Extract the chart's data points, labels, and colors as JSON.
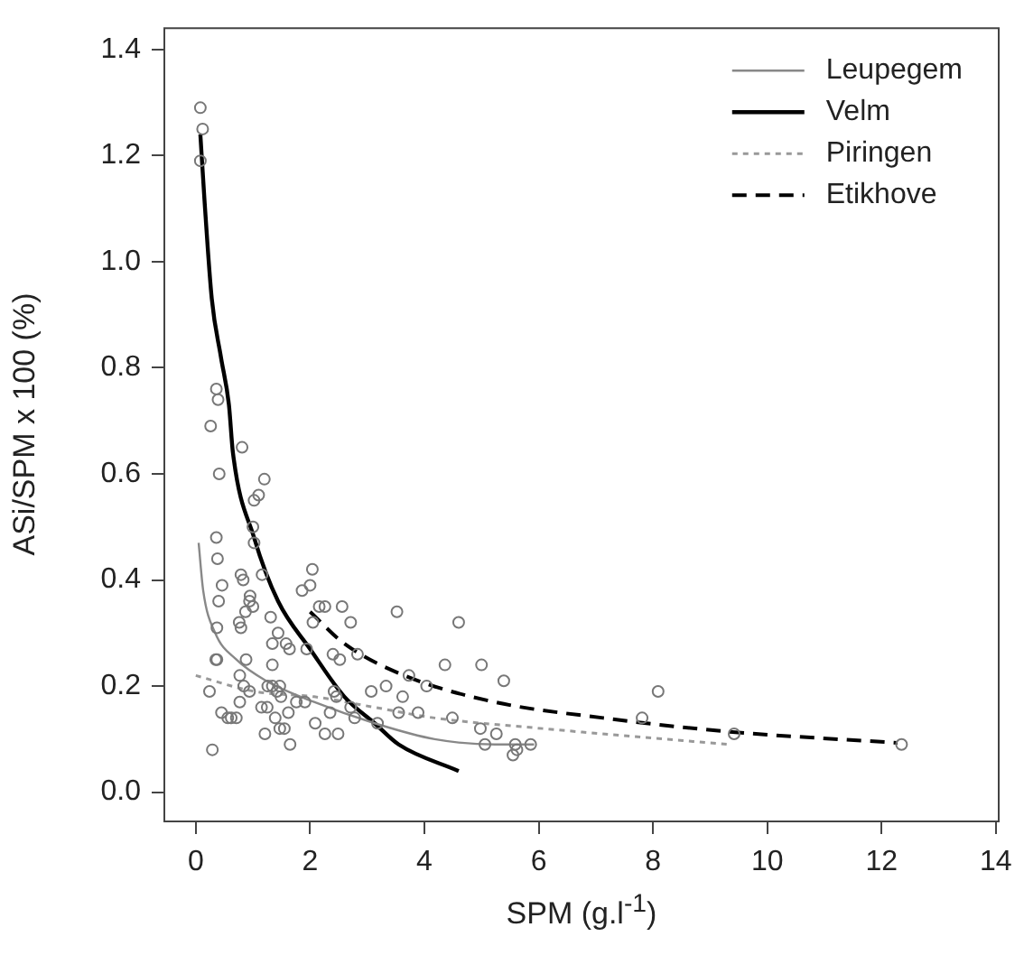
{
  "chart_data": {
    "type": "scatter",
    "xlabel": "SPM (g.l$^{-1}$)",
    "ylabel": "ASi/SPM x 100 (%)",
    "xlim": [
      -0.55,
      14.05
    ],
    "ylim": [
      -0.055,
      1.44
    ],
    "xticks": [
      0,
      2,
      4,
      6,
      8,
      10,
      12,
      14
    ],
    "yticks": [
      {
        "value": 0,
        "label": "0.0"
      },
      0.2,
      0.4,
      0.6,
      0.8,
      {
        "value": 1,
        "label": "1.0"
      },
      1.2,
      1.4
    ],
    "grid": false,
    "legend": "top right",
    "series": [
      {
        "color": "#777777",
        "marker": "circle",
        "x": [
          0.08,
          0.12,
          0.08,
          0.36,
          0.39,
          0.26,
          0.41,
          0.81,
          1.2,
          1.1,
          1.02,
          1.0,
          1.02,
          0.36,
          0.38,
          1.16,
          0.46,
          0.79,
          0.83,
          0.4,
          0.95,
          0.94,
          1.0,
          0.87,
          0.37,
          0.76,
          0.79,
          1.31,
          1.34,
          1.44,
          1.58,
          1.64,
          1.34,
          0.37,
          0.35,
          0.88,
          0.77,
          0.84,
          0.94,
          1.26,
          1.34,
          1.47,
          1.49,
          1.42,
          0.24,
          0.45,
          0.56,
          0.62,
          0.71,
          0.77,
          0.29,
          1.15,
          1.25,
          1.21,
          1.39,
          1.47,
          1.55,
          1.62,
          1.65,
          1.76,
          1.91,
          1.86,
          2.0,
          2.04,
          1.94,
          2.05,
          2.16,
          2.26,
          2.56,
          2.71,
          2.83,
          2.4,
          2.52,
          2.42,
          2.46,
          2.09,
          2.35,
          2.26,
          2.49,
          2.71,
          2.78,
          3.07,
          3.18,
          3.33,
          3.52,
          3.55,
          3.62,
          3.73,
          4.04,
          3.89,
          4.36,
          4.49,
          4.6,
          5.0,
          4.98,
          5.06,
          5.26,
          5.39,
          5.55,
          5.59,
          5.62,
          5.86,
          7.81,
          8.09,
          9.42,
          12.35
        ],
        "values": [
          1.29,
          1.25,
          1.19,
          0.76,
          0.74,
          0.69,
          0.6,
          0.65,
          0.59,
          0.56,
          0.55,
          0.5,
          0.47,
          0.48,
          0.44,
          0.41,
          0.39,
          0.41,
          0.4,
          0.36,
          0.37,
          0.36,
          0.35,
          0.34,
          0.31,
          0.32,
          0.31,
          0.33,
          0.28,
          0.3,
          0.28,
          0.27,
          0.24,
          0.25,
          0.25,
          0.25,
          0.22,
          0.2,
          0.19,
          0.2,
          0.2,
          0.2,
          0.18,
          0.19,
          0.19,
          0.15,
          0.14,
          0.14,
          0.14,
          0.17,
          0.08,
          0.16,
          0.16,
          0.11,
          0.14,
          0.12,
          0.12,
          0.15,
          0.09,
          0.17,
          0.17,
          0.38,
          0.39,
          0.42,
          0.27,
          0.32,
          0.35,
          0.35,
          0.35,
          0.32,
          0.26,
          0.26,
          0.25,
          0.19,
          0.18,
          0.13,
          0.15,
          0.11,
          0.11,
          0.16,
          0.14,
          0.19,
          0.13,
          0.2,
          0.34,
          0.15,
          0.18,
          0.22,
          0.2,
          0.15,
          0.24,
          0.14,
          0.32,
          0.24,
          0.12,
          0.09,
          0.11,
          0.21,
          0.07,
          0.09,
          0.08,
          0.09,
          0.14,
          0.19,
          0.11,
          0.09
        ]
      },
      {
        "type": "line",
        "name": "Leupegem",
        "color": "#888888",
        "line_style": "solid",
        "x": [
          0.05,
          0.13,
          0.34,
          0.71,
          1.23,
          2.07,
          3.13,
          4.18,
          5.23,
          5.92
        ],
        "values": [
          0.47,
          0.38,
          0.3,
          0.25,
          0.21,
          0.17,
          0.13,
          0.1,
          0.09,
          0.09
        ]
      },
      {
        "type": "line",
        "name": "Velm",
        "color": "#000000",
        "line_style": "solid",
        "x": [
          0.08,
          0.15,
          0.28,
          0.44,
          0.58,
          0.65,
          1.02,
          1.44,
          2.0,
          2.6,
          3.13,
          3.55,
          4.6
        ],
        "values": [
          1.24,
          1.12,
          0.93,
          0.82,
          0.73,
          0.64,
          0.48,
          0.36,
          0.27,
          0.18,
          0.13,
          0.09,
          0.04
        ]
      },
      {
        "type": "line",
        "name": "Piringen",
        "color": "#999999",
        "line_style": "dotted",
        "x": [
          0.0,
          1.02,
          2.07,
          3.13,
          4.18,
          6.07,
          9.34
        ],
        "values": [
          0.22,
          0.19,
          0.18,
          0.16,
          0.14,
          0.12,
          0.09
        ]
      },
      {
        "type": "line",
        "name": "Etikhove",
        "color": "#000000",
        "line_style": "dashed",
        "x": [
          2.0,
          2.6,
          3.65,
          5.23,
          7.13,
          9.23,
          12.28
        ],
        "values": [
          0.34,
          0.28,
          0.22,
          0.17,
          0.14,
          0.115,
          0.093
        ]
      }
    ]
  }
}
